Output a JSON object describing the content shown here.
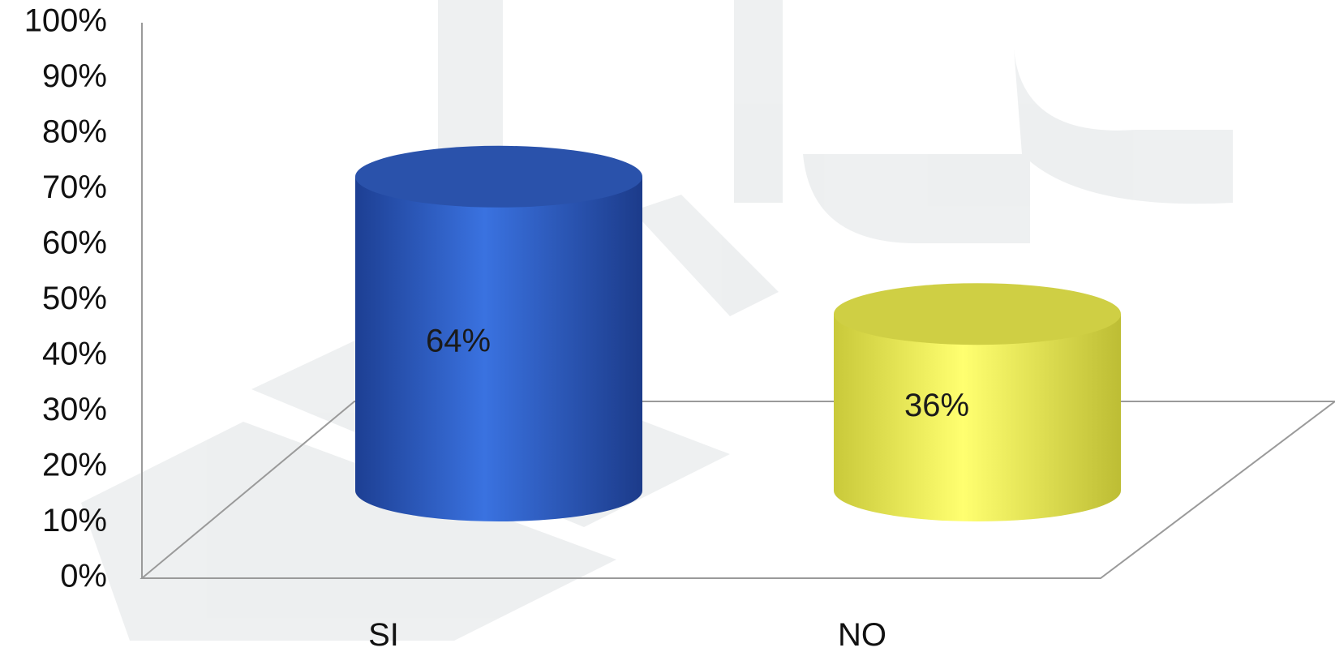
{
  "chart_data": {
    "type": "bar",
    "style": "3d-cylinder",
    "categories": [
      "SI",
      "NO"
    ],
    "values": [
      64,
      36
    ],
    "value_labels": [
      "64%",
      "36%"
    ],
    "ylim": [
      0,
      100
    ],
    "ytick_labels": [
      "0%",
      "10%",
      "20%",
      "30%",
      "40%",
      "50%",
      "60%",
      "70%",
      "80%",
      "90%",
      "100%"
    ],
    "colors": [
      "#2f62cc",
      "#f4f45c"
    ],
    "grid": false,
    "legend": "none"
  }
}
